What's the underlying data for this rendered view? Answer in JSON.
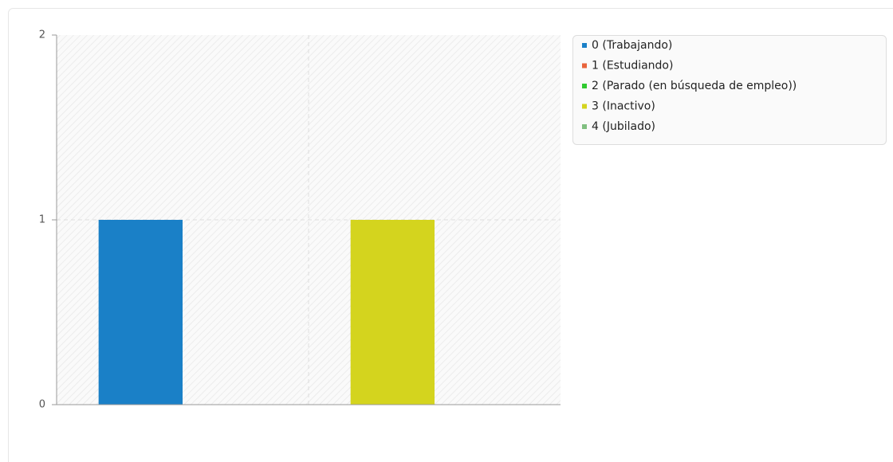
{
  "chart_data": {
    "type": "bar",
    "categories": [
      null
    ],
    "series": [
      {
        "name": "0 (Trabajando)",
        "color": "#1a80c7",
        "values": [
          1
        ]
      },
      {
        "name": "1 (Estudiando)",
        "color": "#e8643c",
        "values": [
          0
        ]
      },
      {
        "name": "2 (Parado (en búsqueda de empleo))",
        "color": "#2fca2f",
        "values": [
          0
        ]
      },
      {
        "name": "3 (Inactivo)",
        "color": "#d4d41e",
        "values": [
          1
        ]
      },
      {
        "name": "4 (Jubilado)",
        "color": "#80bf80",
        "values": [
          0
        ]
      }
    ],
    "ylim": [
      0,
      2
    ],
    "yticks": [
      0,
      1,
      2
    ],
    "grid": true,
    "legend": "right"
  }
}
